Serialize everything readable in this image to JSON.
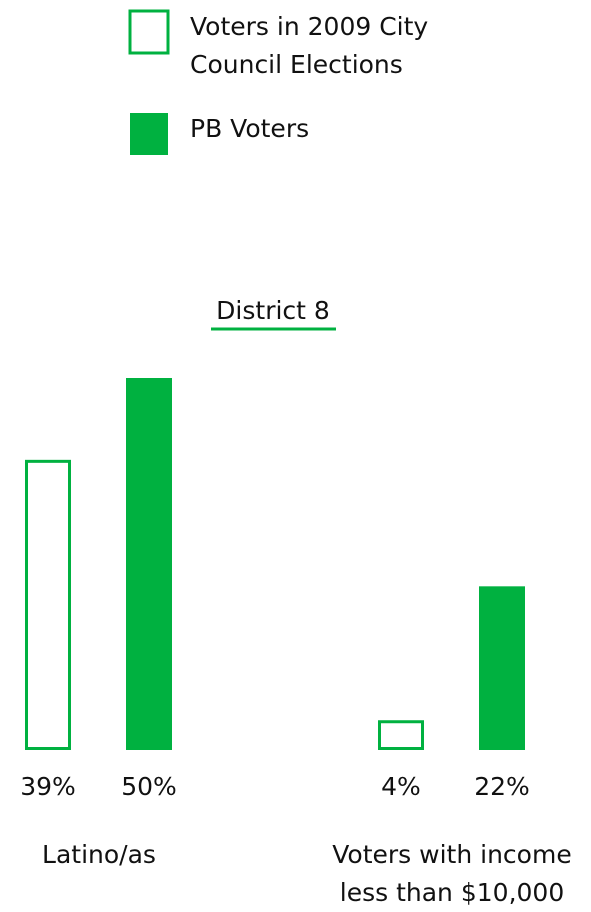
{
  "chart_data": {
    "type": "bar",
    "title": "District 8",
    "categories": [
      "Latino/as",
      "Voters with income less than $10,000"
    ],
    "series": [
      {
        "name": "Voters in 2009 City Council Elections",
        "color": "#00b140",
        "style": "outline",
        "values": [
          39,
          4
        ],
        "value_labels": [
          "39%",
          "4%"
        ]
      },
      {
        "name": "PB Voters",
        "color": "#00b140",
        "style": "filled",
        "values": [
          50,
          22
        ],
        "value_labels": [
          "50%",
          "22%"
        ]
      }
    ]
  }
}
